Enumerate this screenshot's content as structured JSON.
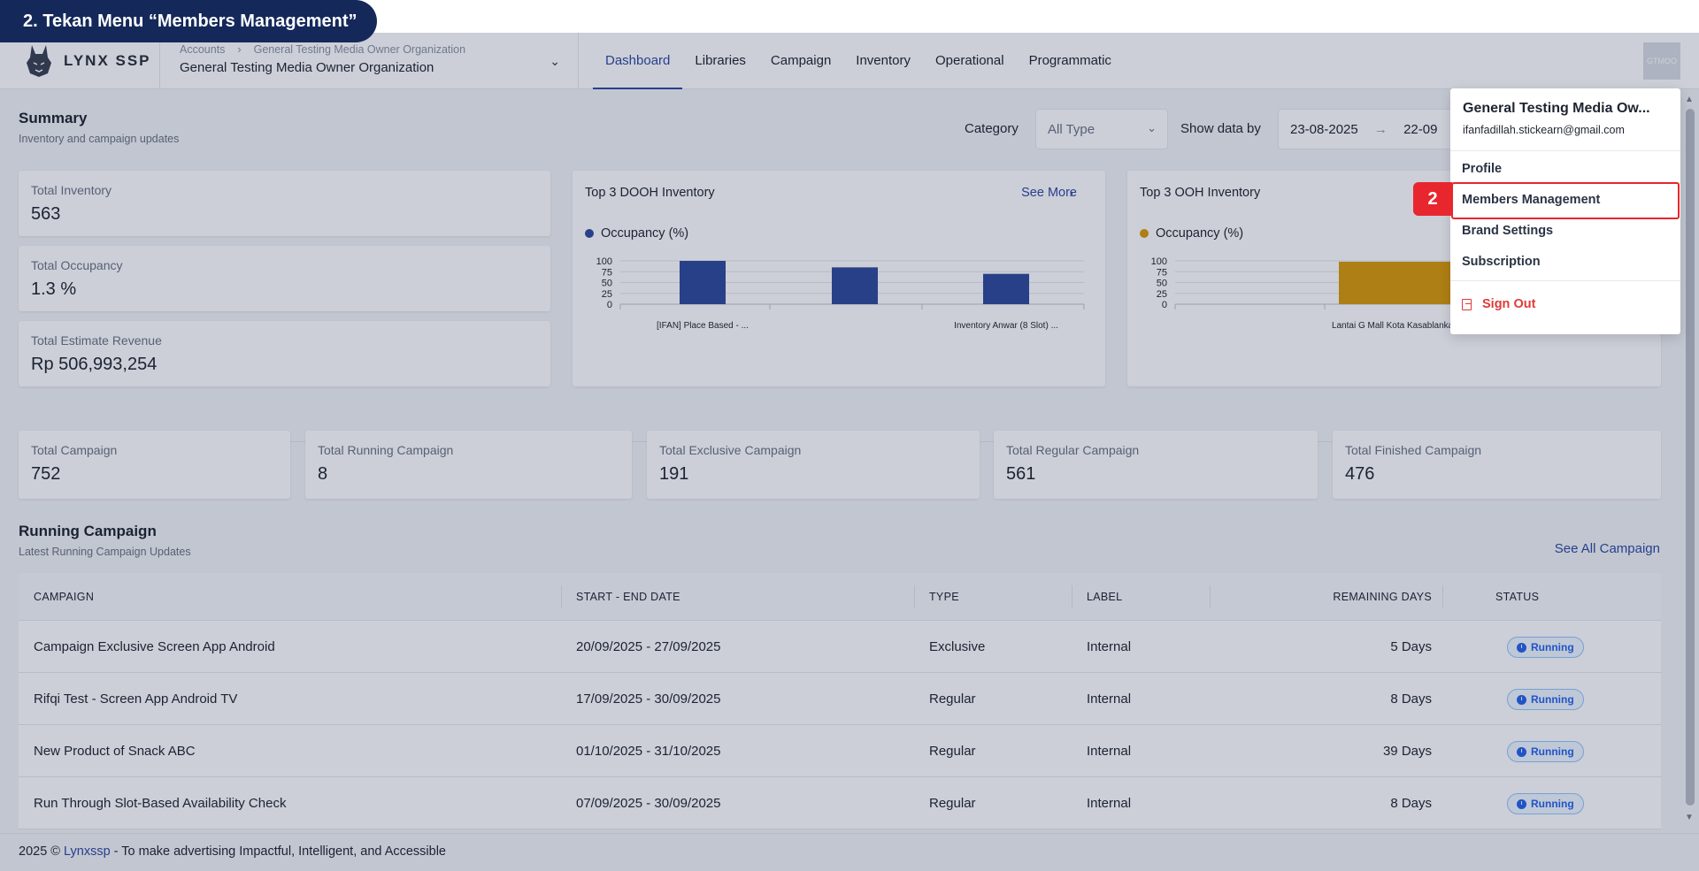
{
  "instruction": "2. Tekan Menu “Members Management”",
  "step_number": "2",
  "logo": {
    "text": "LYNX SSP"
  },
  "breadcrumb": {
    "root": "Accounts",
    "separator": "›",
    "current": "General Testing Media Owner Organization"
  },
  "org_name": "General Testing Media Owner Organization",
  "nav": [
    "Dashboard",
    "Libraries",
    "Campaign",
    "Inventory",
    "Operational",
    "Programmatic"
  ],
  "avatar": {
    "initials": "GTMOO"
  },
  "summary": {
    "title": "Summary",
    "subtitle": "Inventory and campaign updates"
  },
  "filters": {
    "category_label": "Category",
    "category_value": "All Type",
    "show_by_label": "Show data by",
    "date_start": "23-08-2025",
    "date_sep": "→",
    "date_end": "22-09"
  },
  "stats": [
    {
      "label": "Total Inventory",
      "value": "563"
    },
    {
      "label": "Total Occupancy",
      "value": "1.3 %"
    },
    {
      "label": "Total Estimate Revenue",
      "value": "Rp 506,993,254"
    }
  ],
  "dooh": {
    "title": "Top 3 DOOH Inventory",
    "see_more": "See More",
    "legend": "Occupancy (%)",
    "color": "#2f4a9a",
    "chart_data": {
      "type": "bar",
      "categories": [
        "[IFAN] Place Based - ...",
        "",
        "Inventory Anwar (8 Slot) ..."
      ],
      "values": [
        100,
        85,
        70
      ],
      "yticks": [
        "100",
        "75",
        "50",
        "25",
        "0"
      ],
      "ylim": [
        0,
        100
      ]
    }
  },
  "ooh": {
    "title": "Top 3 OOH Inventory",
    "legend": "Occupancy (%)",
    "color": "#d99a08",
    "chart_data": {
      "type": "bar",
      "categories": [
        "Lantai G Mall Kota Kasablanka Neonbox"
      ],
      "values": [
        98
      ],
      "yticks": [
        "100",
        "75",
        "50",
        "25",
        "0"
      ],
      "ylim": [
        0,
        100
      ]
    }
  },
  "campaign_stats": [
    {
      "label": "Total Campaign",
      "value": "752"
    },
    {
      "label": "Total Running Campaign",
      "value": "8"
    },
    {
      "label": "Total Exclusive Campaign",
      "value": "191"
    },
    {
      "label": "Total Regular Campaign",
      "value": "561"
    },
    {
      "label": "Total Finished Campaign",
      "value": "476"
    }
  ],
  "running": {
    "title": "Running Campaign",
    "subtitle": "Latest Running Campaign Updates",
    "see_all": "See All Campaign"
  },
  "table": {
    "headers": [
      "CAMPAIGN",
      "START - END DATE",
      "TYPE",
      "LABEL",
      "REMAINING DAYS",
      "STATUS"
    ],
    "rows": [
      {
        "campaign": "Campaign Exclusive Screen App Android",
        "dates": "20/09/2025 - 27/09/2025",
        "type": "Exclusive",
        "label": "Internal",
        "remaining": "5 Days",
        "status": "Running"
      },
      {
        "campaign": "Rifqi Test - Screen App Android TV",
        "dates": "17/09/2025 - 30/09/2025",
        "type": "Regular",
        "label": "Internal",
        "remaining": "8 Days",
        "status": "Running"
      },
      {
        "campaign": "New Product of Snack ABC",
        "dates": "01/10/2025 - 31/10/2025",
        "type": "Regular",
        "label": "Internal",
        "remaining": "39 Days",
        "status": "Running"
      },
      {
        "campaign": "Run Through Slot-Based Availability Check",
        "dates": "07/09/2025 - 30/09/2025",
        "type": "Regular",
        "label": "Internal",
        "remaining": "8 Days",
        "status": "Running"
      }
    ]
  },
  "footer": {
    "prefix": "2025 © ",
    "brand": "Lynxssp",
    "suffix": " - To make advertising Impactful, Intelligent, and Accessible"
  },
  "menu": {
    "name": "General Testing Media Ow...",
    "email": "ifanfadillah.stickearn@gmail.com",
    "items": [
      "Profile",
      "Members Management",
      "Brand Settings",
      "Subscription"
    ],
    "sign_out": "Sign Out"
  }
}
